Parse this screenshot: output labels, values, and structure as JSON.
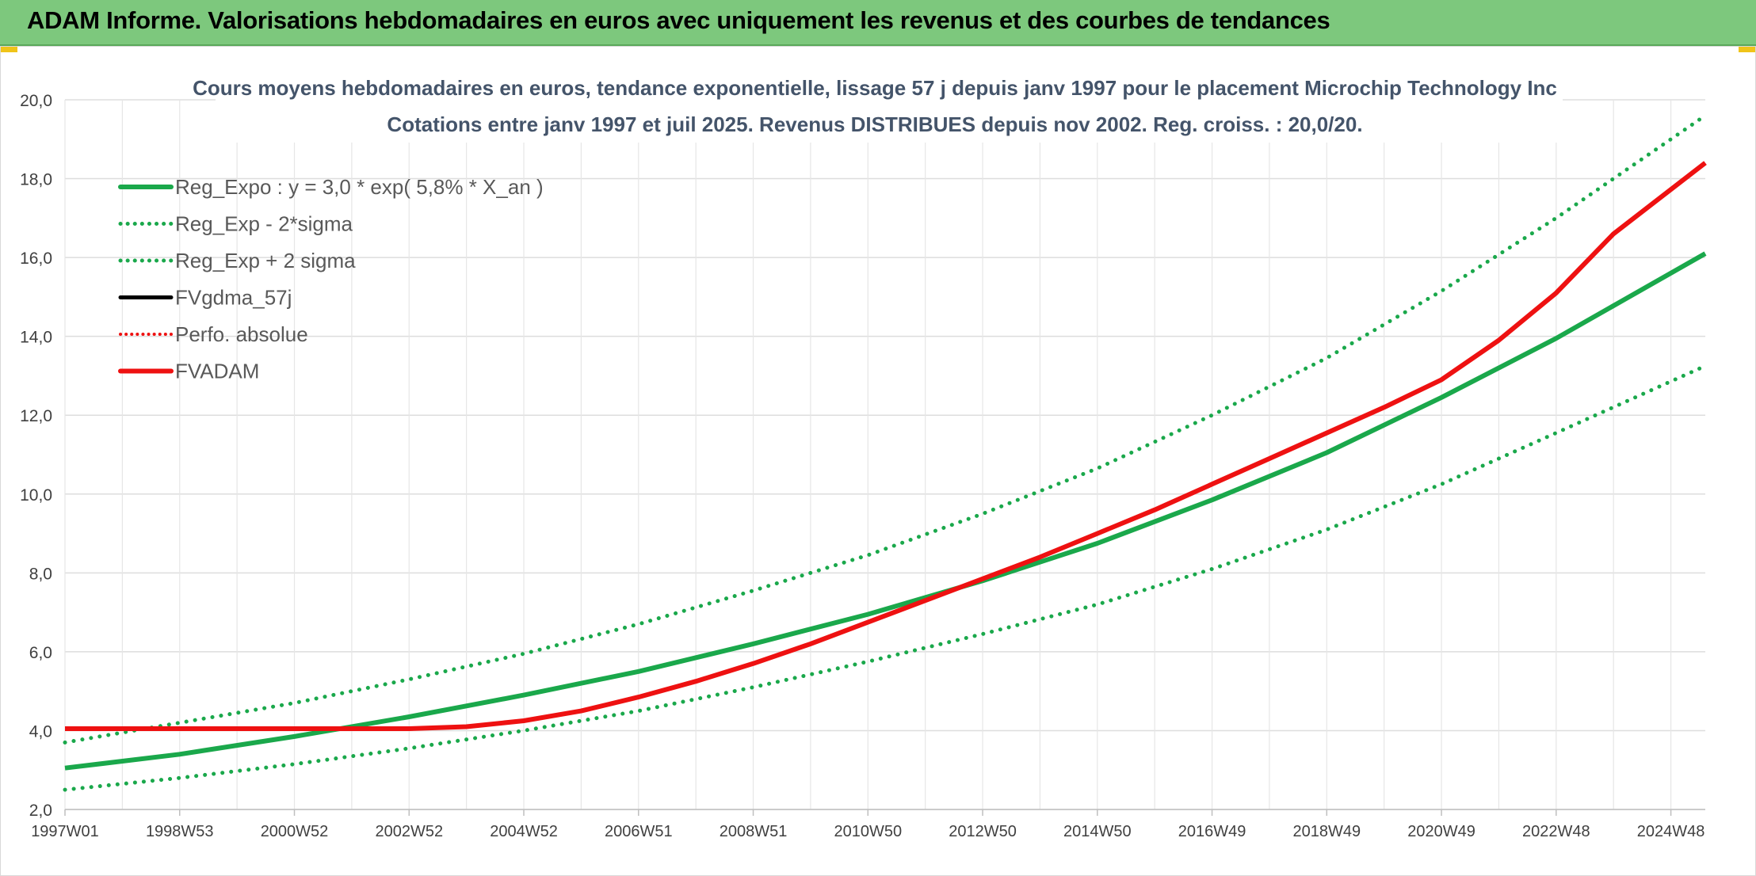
{
  "banner": {
    "title": "ADAM Informe. Valorisations hebdomadaires en euros avec uniquement les revenus et des courbes de tendances"
  },
  "colors": {
    "banner_bg": "#7dc87d",
    "green": "#1aa84b",
    "red": "#ee1111",
    "black": "#000000",
    "grid": "#dddddd",
    "text": "#44546a"
  },
  "chart_data": {
    "type": "line",
    "title_line1": "Cours moyens hebdomadaires en euros, tendance exponentielle, lissage 57 j depuis janv 1997 pour le placement Microchip Technology Inc",
    "title_line2": "Cotations entre janv 1997 et juil 2025. Revenus DISTRIBUES depuis nov 2002. Reg. croiss. : 20,0/20.",
    "xlabel": "",
    "ylabel": "",
    "x_range": [
      1997.0,
      2025.6
    ],
    "ylim": [
      2.0,
      20.0
    ],
    "grid": true,
    "legend_position": "top-left",
    "y_ticks": [
      "2,0",
      "4,0",
      "6,0",
      "8,0",
      "10,0",
      "12,0",
      "14,0",
      "16,0",
      "18,0",
      "20,0"
    ],
    "x_tick_labels": [
      "1997W01",
      "1998W53",
      "2000W52",
      "2002W52",
      "2004W52",
      "2006W51",
      "2008W51",
      "2010W50",
      "2012W50",
      "2014W50",
      "2016W49",
      "2018W49",
      "2020W49",
      "2022W48",
      "2024W48"
    ],
    "legend": [
      "Reg_Expo : y = 3,0 * exp( 5,8% *  X_an )",
      "Reg_Exp - 2*sigma",
      "Reg_Exp + 2 sigma",
      "FVgdma_57j",
      "Perfo. absolue",
      "FVADAM"
    ],
    "series": [
      {
        "name": "Reg_Expo : y = 3,0 * exp( 5,8% *  X_an )",
        "style": "solid",
        "color": "#1aa84b",
        "x": [
          1997.0,
          1999.0,
          2001.0,
          2003.0,
          2005.0,
          2007.0,
          2009.0,
          2011.0,
          2013.0,
          2015.0,
          2017.0,
          2019.0,
          2021.0,
          2023.0,
          2025.6
        ],
        "y": [
          3.05,
          3.4,
          3.85,
          4.35,
          4.9,
          5.5,
          6.2,
          6.95,
          7.8,
          8.75,
          9.85,
          11.05,
          12.45,
          13.95,
          16.1
        ]
      },
      {
        "name": "Reg_Exp - 2*sigma",
        "style": "dotted",
        "color": "#1aa84b",
        "x": [
          1997.0,
          1999.0,
          2001.0,
          2003.0,
          2005.0,
          2007.0,
          2009.0,
          2011.0,
          2013.0,
          2015.0,
          2017.0,
          2019.0,
          2021.0,
          2023.0,
          2025.6
        ],
        "y": [
          2.5,
          2.8,
          3.15,
          3.55,
          4.0,
          4.5,
          5.1,
          5.75,
          6.45,
          7.2,
          8.1,
          9.1,
          10.25,
          11.55,
          13.25
        ]
      },
      {
        "name": "Reg_Exp + 2 sigma",
        "style": "dotted",
        "color": "#1aa84b",
        "x": [
          1997.0,
          1999.0,
          2001.0,
          2003.0,
          2005.0,
          2007.0,
          2009.0,
          2011.0,
          2013.0,
          2015.0,
          2017.0,
          2019.0,
          2021.0,
          2023.0,
          2025.6
        ],
        "y": [
          3.7,
          4.2,
          4.7,
          5.3,
          5.95,
          6.7,
          7.55,
          8.45,
          9.5,
          10.65,
          12.0,
          13.45,
          15.15,
          17.0,
          19.6
        ]
      },
      {
        "name": "FVADAM",
        "style": "solid",
        "color": "#ee1111",
        "x": [
          1997.0,
          1999.0,
          2001.0,
          2003.0,
          2004.0,
          2005.0,
          2006.0,
          2007.0,
          2008.0,
          2009.0,
          2010.0,
          2011.0,
          2012.0,
          2013.0,
          2014.0,
          2015.0,
          2016.0,
          2017.0,
          2018.0,
          2019.0,
          2020.0,
          2021.0,
          2022.0,
          2023.0,
          2024.0,
          2025.6
        ],
        "y": [
          4.05,
          4.05,
          4.05,
          4.05,
          4.1,
          4.25,
          4.5,
          4.85,
          5.25,
          5.7,
          6.2,
          6.75,
          7.3,
          7.85,
          8.4,
          9.0,
          9.6,
          10.25,
          10.9,
          11.55,
          12.2,
          12.9,
          13.9,
          15.1,
          16.6,
          18.4
        ]
      }
    ]
  }
}
